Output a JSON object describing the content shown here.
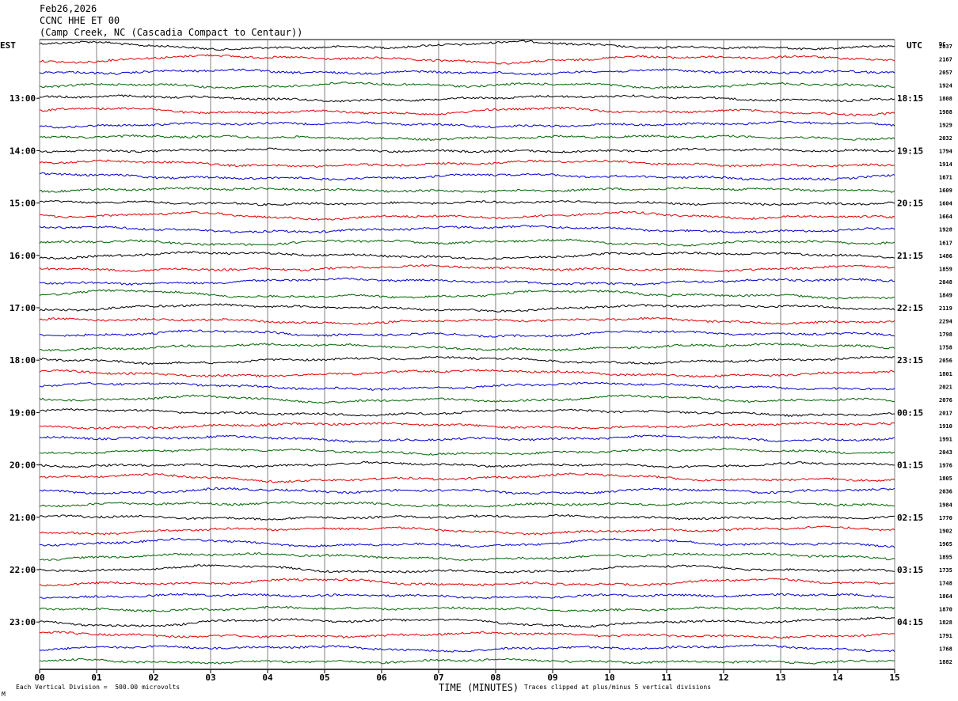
{
  "header": {
    "date": "Feb26,2026",
    "station": "CCNC HHE ET 00",
    "location": "(Camp Creek, NC (Cascadia Compact to Centaur))"
  },
  "footer": {
    "division_note": "Each Vertical Division =  500.00 microvolts",
    "clip_note": "Traces clipped at plus/minus 5 vertical divisions",
    "corner_mark": "M"
  },
  "colors": {
    "trace_cycle": [
      "#000000",
      "#e00000",
      "#0000d0",
      "#006400"
    ],
    "gridline": "#808080"
  },
  "chart_data": {
    "type": "line",
    "title": "",
    "xlabel": "TIME (MINUTES)",
    "ylabel": "",
    "xlim": [
      0,
      15
    ],
    "x_ticks": [
      "00",
      "01",
      "02",
      "03",
      "04",
      "05",
      "06",
      "07",
      "08",
      "09",
      "10",
      "11",
      "12",
      "13",
      "14",
      "15"
    ],
    "left_axis_label": "EST",
    "right_axis_label": "UTC",
    "dc_label": "DC",
    "left_time_labels": [
      "13:00",
      "14:00",
      "15:00",
      "16:00",
      "17:00",
      "18:00",
      "19:00",
      "20:00",
      "21:00",
      "22:00",
      "23:00"
    ],
    "right_time_labels": [
      "18:15",
      "19:15",
      "20:15",
      "21:15",
      "22:15",
      "23:15",
      "00:15",
      "01:15",
      "02:15",
      "03:15",
      "04:15"
    ],
    "hour_label_trace_index": [
      4,
      8,
      12,
      16,
      20,
      24,
      28,
      32,
      36,
      40,
      44
    ],
    "trace_count": 48,
    "dc_offsets": [
      "2037",
      "2167",
      "2057",
      "1924",
      "1808",
      "1988",
      "1929",
      "2032",
      "1794",
      "1914",
      "1671",
      "1609",
      "1604",
      "1664",
      "1928",
      "1617",
      "1486",
      "1859",
      "2048",
      "1849",
      "2119",
      "2294",
      "1798",
      "1758",
      "2056",
      "1801",
      "2021",
      "2076",
      "2017",
      "1910",
      "1991",
      "2043",
      "1976",
      "1805",
      "2036",
      "1984",
      "1770",
      "1902",
      "1965",
      "1895",
      "1735",
      "1748",
      "1864",
      "1870",
      "1828",
      "1791",
      "1768",
      "1882"
    ],
    "grid": true
  }
}
